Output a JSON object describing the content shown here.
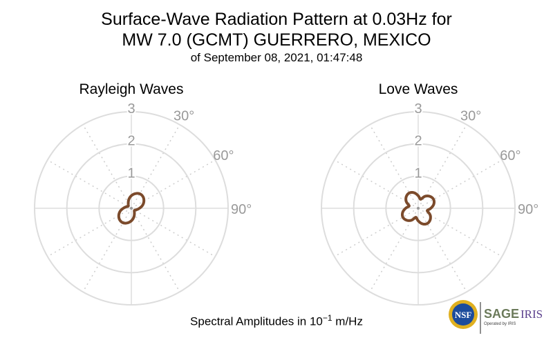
{
  "title_line1": "Surface-Wave Radiation Pattern at 0.03Hz for",
  "title_line2": "MW 7.0 (GCMT) GUERRERO, MEXICO",
  "subtitle": "of September 08, 2021, 01:47:48",
  "footer": {
    "prefix": "Spectral Amplitudes in 10",
    "exponent": "−1",
    "suffix": " m/Hz"
  },
  "logo": {
    "nsf": "NSF",
    "sage": "SAGE",
    "iris": "IRIS",
    "operated": "Operated by IRIS"
  },
  "colors": {
    "curve": "#7b4a2b",
    "grid": "#dddddd",
    "labels": "#999999"
  },
  "chart_data": [
    {
      "type": "polar-line",
      "title": "Rayleigh Waves",
      "radial_ticks": [
        "1",
        "2",
        "3"
      ],
      "rlim": [
        0,
        3
      ],
      "angle_ticks": [
        "30°",
        "60°",
        "90°"
      ],
      "azimuth_deg": [
        0,
        15,
        30,
        45,
        60,
        75,
        90,
        105,
        120,
        135,
        150,
        165,
        180,
        195,
        210,
        225,
        240,
        255,
        270,
        285,
        300,
        315,
        330,
        345
      ],
      "amplitude": [
        0.39,
        0.47,
        0.52,
        0.51,
        0.45,
        0.36,
        0.25,
        0.17,
        0.12,
        0.13,
        0.19,
        0.29,
        0.39,
        0.47,
        0.52,
        0.51,
        0.45,
        0.36,
        0.25,
        0.17,
        0.12,
        0.13,
        0.19,
        0.29
      ]
    },
    {
      "type": "polar-line",
      "title": "Love Waves",
      "radial_ticks": [
        "1",
        "2",
        "3"
      ],
      "rlim": [
        0,
        3
      ],
      "angle_ticks": [
        "30°",
        "60°",
        "90°"
      ],
      "azimuth_deg": [
        0,
        15,
        30,
        45,
        60,
        75,
        90,
        105,
        120,
        135,
        150,
        165,
        180,
        195,
        210,
        225,
        240,
        255,
        270,
        285,
        300,
        315,
        330,
        345
      ],
      "amplitude": [
        0.39,
        0.29,
        0.43,
        0.52,
        0.55,
        0.5,
        0.39,
        0.29,
        0.43,
        0.52,
        0.55,
        0.5,
        0.39,
        0.29,
        0.43,
        0.52,
        0.55,
        0.5,
        0.39,
        0.29,
        0.43,
        0.52,
        0.55,
        0.5
      ]
    }
  ]
}
